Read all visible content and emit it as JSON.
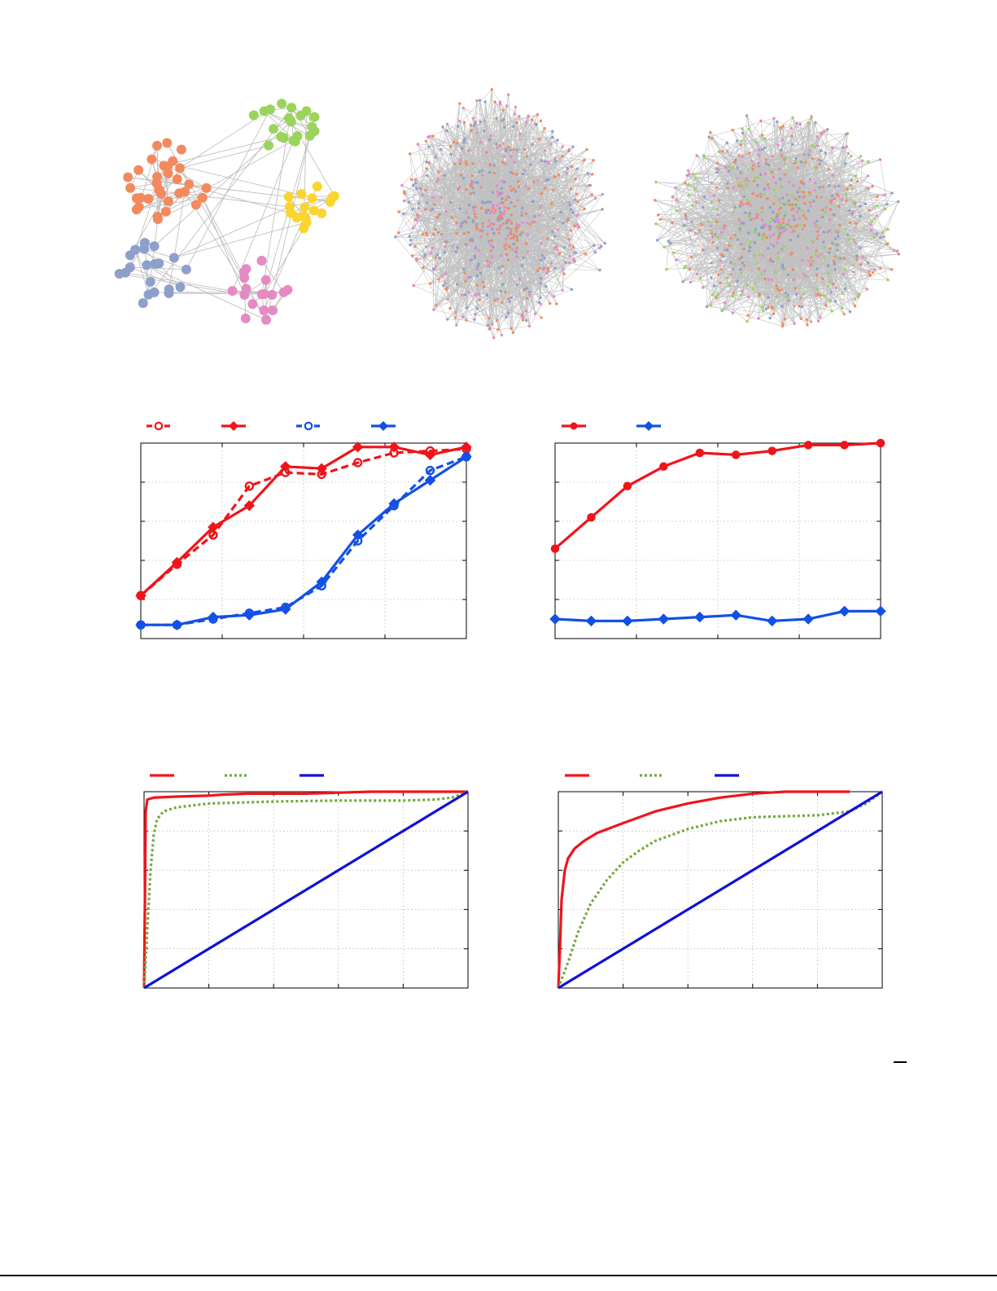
{
  "colors": {
    "edge": "#c0c0c0",
    "community": [
      "#f28a5e",
      "#9bd45b",
      "#fad52e",
      "#8f9fcc",
      "#e48bc3"
    ],
    "red": "#f0141a",
    "blue": "#1250e6",
    "green": "#74a83a",
    "diag_blue": "#1010d8",
    "grid": "#b8b8b8"
  },
  "networks": [
    {
      "kind": "small-communities",
      "communities": 5,
      "nodes_per_community": [
        32,
        20,
        18,
        20,
        18
      ]
    },
    {
      "kind": "dense-hairball",
      "communities": 3,
      "nodes": 600
    },
    {
      "kind": "dense-hairball",
      "communities": 4,
      "nodes": 700
    }
  ],
  "chart_data": [
    {
      "type": "line",
      "grid": true,
      "legend": "top-left-outside",
      "xlim": [
        1,
        10
      ],
      "ylim": [
        0,
        1
      ],
      "x": [
        1,
        2,
        3,
        4,
        5,
        6,
        7,
        8,
        9,
        10
      ],
      "series": [
        {
          "color": "red",
          "dash": true,
          "marker": "open-circle",
          "values": [
            0.22,
            0.38,
            0.53,
            0.78,
            0.85,
            0.84,
            0.9,
            0.95,
            0.96,
            0.97
          ]
        },
        {
          "color": "red",
          "dash": false,
          "marker": "diamond",
          "values": [
            0.22,
            0.39,
            0.57,
            0.68,
            0.88,
            0.87,
            0.98,
            0.98,
            0.94,
            0.98
          ]
        },
        {
          "color": "blue",
          "dash": true,
          "marker": "open-circle",
          "values": [
            0.07,
            0.07,
            0.1,
            0.13,
            0.16,
            0.27,
            0.5,
            0.68,
            0.86,
            0.93
          ]
        },
        {
          "color": "blue",
          "dash": false,
          "marker": "diamond",
          "values": [
            0.07,
            0.07,
            0.11,
            0.12,
            0.15,
            0.29,
            0.53,
            0.69,
            0.81,
            0.93
          ]
        }
      ]
    },
    {
      "type": "line",
      "grid": true,
      "legend": "top-left-outside",
      "xlim": [
        1,
        10
      ],
      "ylim": [
        0,
        1
      ],
      "x": [
        1,
        2,
        3,
        4,
        5,
        6,
        7,
        8,
        9,
        10
      ],
      "series": [
        {
          "color": "red",
          "dash": false,
          "marker": "circle",
          "values": [
            0.46,
            0.62,
            0.78,
            0.88,
            0.95,
            0.94,
            0.96,
            0.99,
            0.99,
            1.0
          ]
        },
        {
          "color": "blue",
          "dash": false,
          "marker": "diamond",
          "values": [
            0.1,
            0.09,
            0.09,
            0.1,
            0.11,
            0.12,
            0.09,
            0.1,
            0.14,
            0.14
          ]
        }
      ]
    },
    {
      "type": "line",
      "grid": true,
      "legend": "top-left-outside",
      "xlim": [
        0,
        1
      ],
      "ylim": [
        0,
        1
      ],
      "series": [
        {
          "color": "red",
          "style": "solid",
          "x": [
            0,
            0.003,
            0.005,
            0.01,
            0.03,
            0.1,
            0.2,
            0.24,
            0.32,
            0.5,
            0.6,
            0.7,
            0.85,
            1.0
          ],
          "y": [
            0,
            0.5,
            0.9,
            0.96,
            0.97,
            0.975,
            0.98,
            0.985,
            0.99,
            0.99,
            0.995,
            1.0,
            1.0,
            1.0
          ]
        },
        {
          "color": "green",
          "style": "dotted",
          "x": [
            0,
            0.01,
            0.02,
            0.03,
            0.04,
            0.06,
            0.1,
            0.2,
            0.4,
            0.6,
            0.8,
            0.9,
            0.95,
            1.0
          ],
          "y": [
            0,
            0.3,
            0.6,
            0.78,
            0.86,
            0.9,
            0.92,
            0.94,
            0.95,
            0.955,
            0.955,
            0.96,
            0.97,
            1.0
          ]
        },
        {
          "color": "diag_blue",
          "style": "solid",
          "x": [
            0,
            1
          ],
          "y": [
            0,
            1
          ]
        }
      ]
    },
    {
      "type": "line",
      "grid": true,
      "legend": "top-left-outside",
      "xlim": [
        0,
        1
      ],
      "ylim": [
        0,
        1
      ],
      "series": [
        {
          "color": "red",
          "style": "solid",
          "x": [
            0,
            0.005,
            0.01,
            0.02,
            0.03,
            0.05,
            0.08,
            0.12,
            0.2,
            0.3,
            0.4,
            0.5,
            0.6,
            0.7,
            0.9
          ],
          "y": [
            0,
            0.2,
            0.45,
            0.6,
            0.66,
            0.71,
            0.75,
            0.79,
            0.84,
            0.9,
            0.94,
            0.97,
            0.99,
            1.0,
            1.0
          ]
        },
        {
          "color": "green",
          "style": "dotted",
          "x": [
            0,
            0.03,
            0.06,
            0.1,
            0.15,
            0.2,
            0.25,
            0.3,
            0.4,
            0.5,
            0.6,
            0.7,
            0.8,
            0.9,
            0.95,
            1.0
          ],
          "y": [
            0,
            0.13,
            0.28,
            0.43,
            0.55,
            0.64,
            0.7,
            0.75,
            0.81,
            0.85,
            0.87,
            0.875,
            0.88,
            0.9,
            0.94,
            1.0
          ]
        },
        {
          "color": "diag_blue",
          "style": "solid",
          "x": [
            0,
            1
          ],
          "y": [
            0,
            1
          ]
        }
      ]
    }
  ]
}
